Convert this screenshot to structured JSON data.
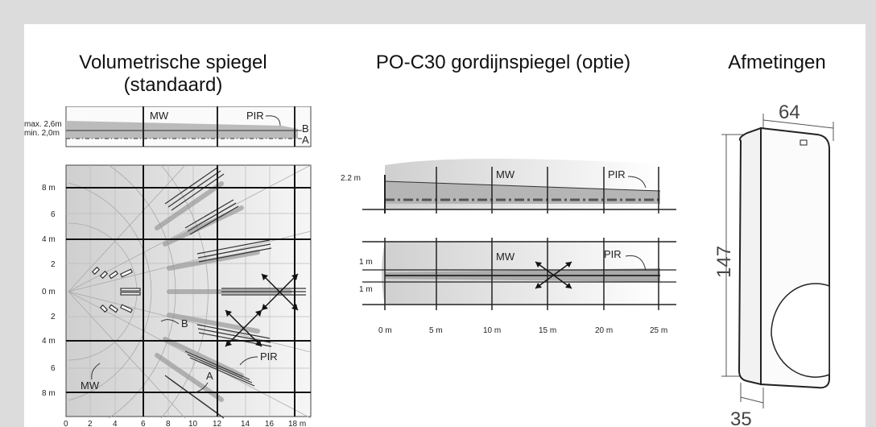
{
  "titles": {
    "left_line1": "Volumetrische spiegel",
    "left_line2": "(standaard)",
    "middle": "PO-C30 gordijnspiegel (optie)",
    "right": "Afmetingen"
  },
  "left_side": {
    "max_label": "max. 2,6m",
    "min_label": "min. 2,0m",
    "mw": "MW",
    "pir": "PIR",
    "b": "B",
    "a": "A"
  },
  "left_top": {
    "y_ticks": [
      "8 m",
      "6",
      "4 m",
      "2",
      "0 m",
      "2",
      "4 m",
      "6",
      "8 m"
    ],
    "x_ticks": [
      "0",
      "2",
      "4",
      "6",
      "8",
      "10",
      "12",
      "14",
      "16",
      "18 m"
    ],
    "labels": {
      "b": "B",
      "pir": "PIR",
      "a": "A",
      "mw": "MW"
    }
  },
  "curtain_side": {
    "height": "2.2 m",
    "mw": "MW",
    "pir": "PIR"
  },
  "curtain_top": {
    "y_ticks": [
      "1 m",
      "1 m"
    ],
    "mw": "MW",
    "pir": "PIR",
    "x_ticks": [
      "0 m",
      "5 m",
      "10 m",
      "15 m",
      "20 m",
      "25 m"
    ]
  },
  "dimensions": {
    "width": "64",
    "height": "147",
    "depth": "35"
  }
}
